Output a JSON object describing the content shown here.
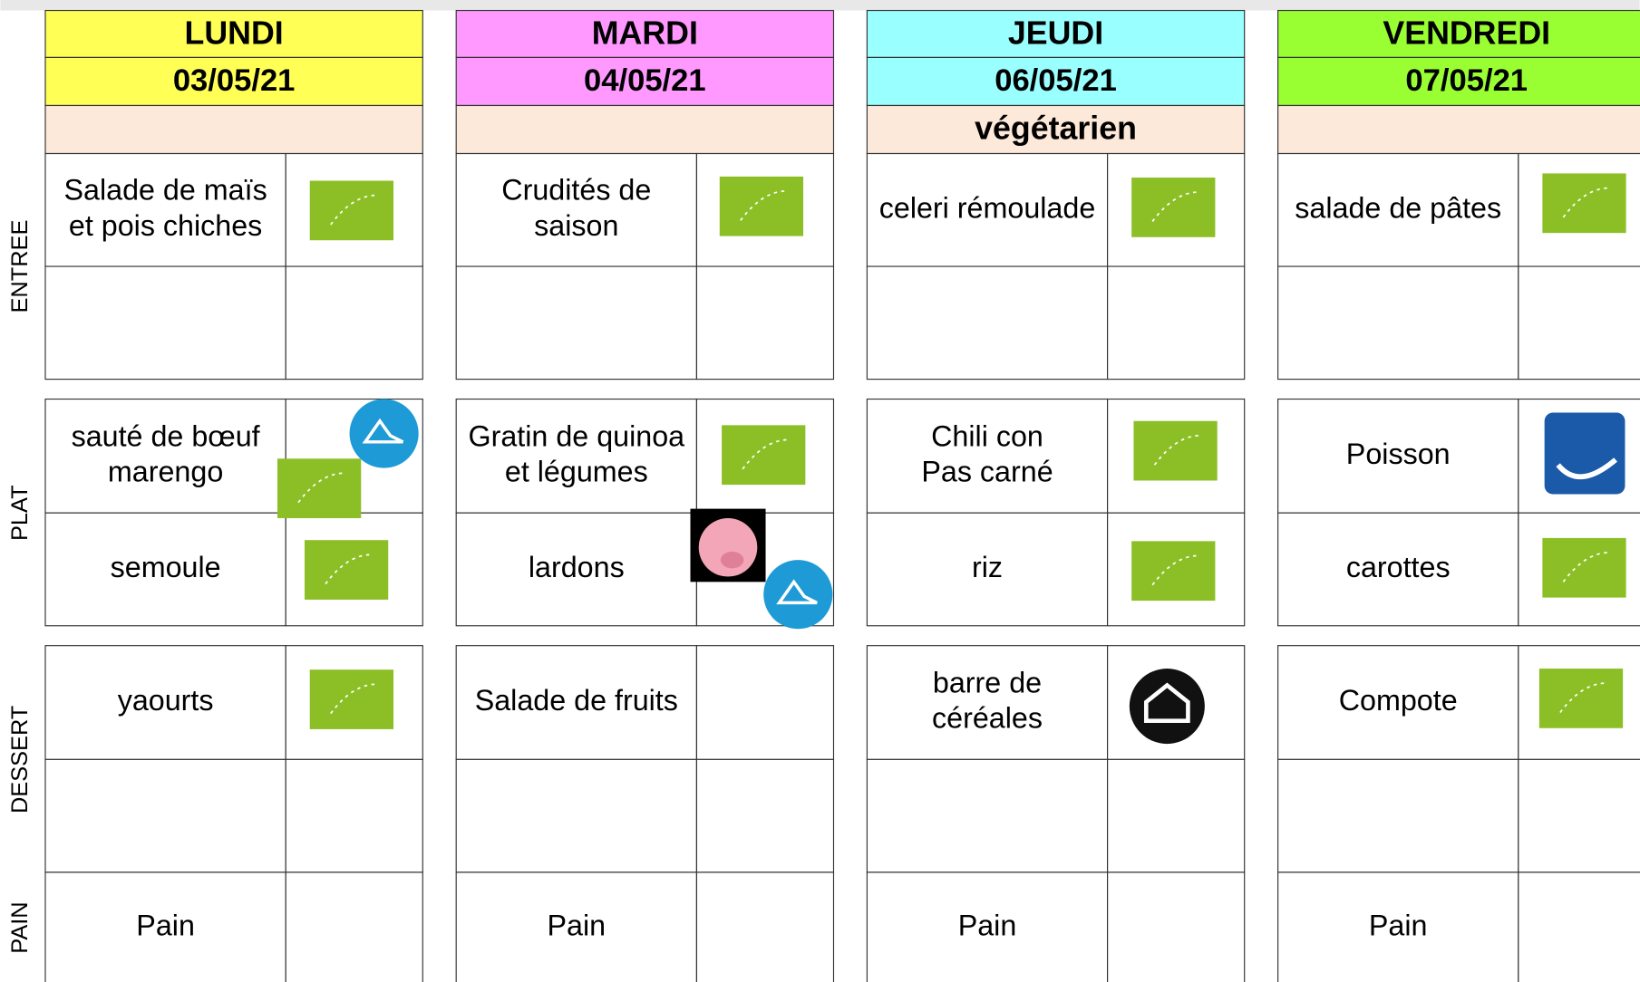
{
  "sections": [
    "ENTREE",
    "PLAT",
    "DESSERT",
    "PAIN"
  ],
  "days": [
    {
      "name": "LUNDI",
      "date": "03/05/21",
      "entree": [
        [
          "Salade de maïs",
          "et pois chiches"
        ]
      ],
      "plat": [
        [
          "sauté de bœuf",
          "marengo"
        ],
        [
          "semoule"
        ]
      ],
      "dessert": [
        [
          "yaourts"
        ]
      ],
      "pain": "Pain"
    },
    {
      "name": "MARDI",
      "date": "04/05/21",
      "entree": [
        [
          "Crudités de",
          "saison"
        ]
      ],
      "plat": [
        [
          "Gratin de quinoa",
          "et légumes"
        ],
        [
          "lardons"
        ]
      ],
      "dessert": [
        [
          "Salade de fruits"
        ]
      ],
      "pain": "Pain"
    },
    {
      "name": "JEUDI",
      "date": "06/05/21",
      "note": "végétarien",
      "entree": [
        [
          "celeri rémoulade"
        ]
      ],
      "plat": [
        [
          "Chili con",
          "Pas carné"
        ],
        [
          "riz"
        ]
      ],
      "dessert": [
        [
          "barre de",
          "céréales"
        ]
      ],
      "pain": "Pain"
    },
    {
      "name": "VENDREDI",
      "date": "07/05/21",
      "entree": [
        [
          "salade de pâtes"
        ]
      ],
      "plat": [
        [
          "Poisson"
        ],
        [
          "carottes"
        ]
      ],
      "dessert": [
        [
          "Compote"
        ]
      ],
      "pain": "Pain"
    }
  ]
}
